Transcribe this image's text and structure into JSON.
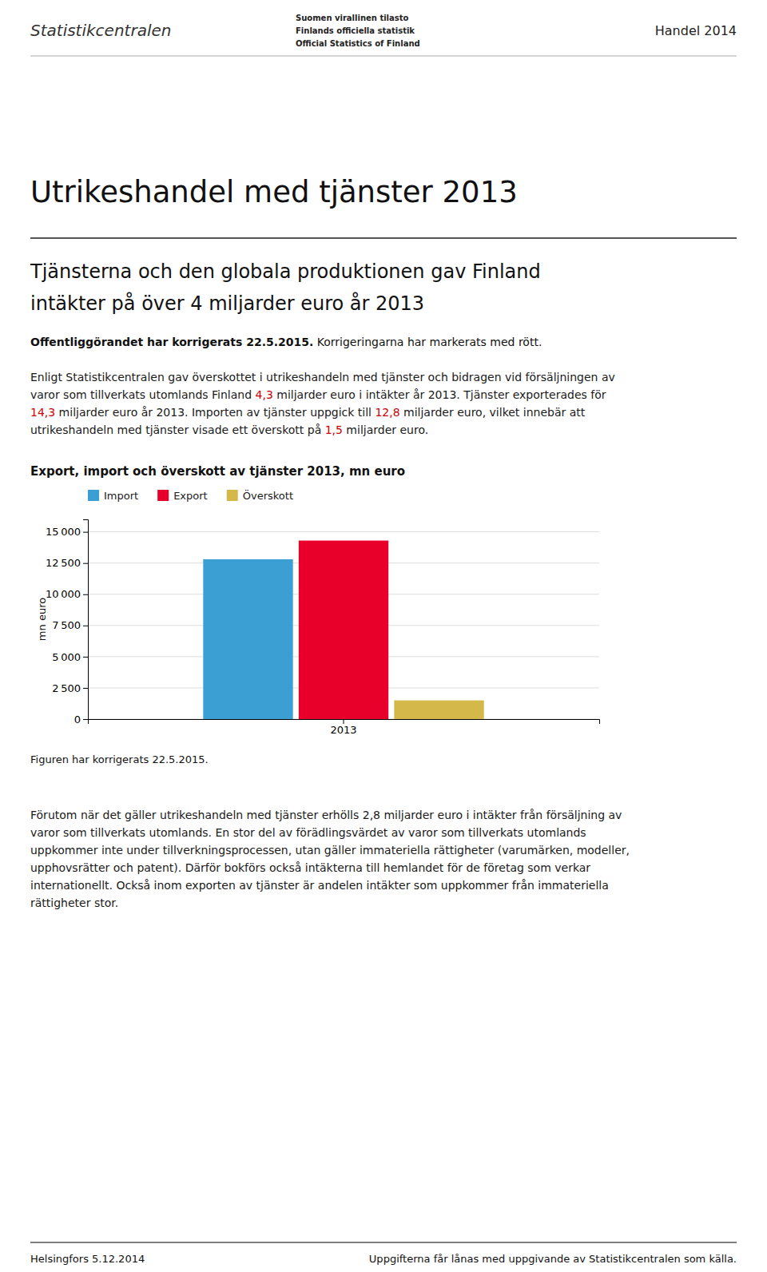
{
  "header": {
    "logo": "Statistikcentralen",
    "official_lines": [
      "Suomen virallinen tilasto",
      "Finlands officiella statistik",
      "Official Statistics of Finland"
    ],
    "right": "Handel 2014"
  },
  "title": "Utrikeshandel med tjänster 2013",
  "subtitle_lines": [
    "Tjänsterna och den globala produktionen gav Finland",
    "intäkter på över 4 miljarder euro år 2013"
  ],
  "correction_note": {
    "bold_text": "Offentliggörandet har korrigerats 22.5.2015.",
    "text": " Korrigeringarna har markerats med rött."
  },
  "body1": [
    [
      {
        "text": "Enligt Statistikcentralen gav överskottet i utrikeshandeln med tjänster och bidragen vid försäljningen av"
      }
    ],
    [
      {
        "text": "varor som tillverkats utomlands Finland "
      },
      {
        "text": "4,3",
        "color": "#cc0000"
      },
      {
        "text": " miljarder euro i intäkter år 2013. Tjänster exporterades för"
      }
    ],
    [
      {
        "text": "14,3",
        "color": "#cc0000"
      },
      {
        "text": " miljarder euro år 2013. Importen av tjänster uppgick till "
      },
      {
        "text": "12,8",
        "color": "#cc0000"
      },
      {
        "text": " miljarder euro, vilket innebär att"
      }
    ],
    [
      {
        "text": "utrikeshandeln med tjänster visade ett överskott på "
      },
      {
        "text": "1,5",
        "color": "#cc0000"
      },
      {
        "text": " miljarder euro."
      }
    ]
  ],
  "chart_data": {
    "type": "bar",
    "title": "Export, import och överskott av tjänster 2013, mn euro",
    "categories": [
      "2013"
    ],
    "series": [
      {
        "name": "Import",
        "color": "#3b9fd4",
        "values": [
          12800
        ]
      },
      {
        "name": "Export",
        "color": "#e8002a",
        "values": [
          14300
        ]
      },
      {
        "name": "Överskott",
        "color": "#d4b84a",
        "values": [
          1500
        ]
      }
    ],
    "ylabel": "mn euro",
    "ylim": [
      0,
      16000
    ],
    "yticks": [
      0,
      {
        "value": 2500,
        "label": "2 500"
      },
      {
        "value": 5000,
        "label": "5 000"
      },
      {
        "value": 7500,
        "label": "7 500"
      },
      {
        "value": 10000,
        "label": "10 000"
      },
      {
        "value": 12500,
        "label": "12 500"
      },
      {
        "value": 15000,
        "label": "15 000"
      }
    ],
    "grid": true,
    "legend": "top"
  },
  "figure_note": "Figuren har korrigerats 22.5.2015.",
  "body2": [
    "Förutom när det gäller utrikeshandeln med tjänster erhölls 2,8 miljarder euro i intäkter från försäljning av",
    "varor som tillverkats utomlands. En stor del av förädlingsvärdet av varor som tillverkats utomlands",
    "uppkommer inte under tillverkningsprocessen, utan gäller immateriella rättigheter (varumärken, modeller,",
    "upphovsrätter och patent). Därför bokförs också intäkterna till hemlandet för de företag som verkar",
    "internationellt. Också inom exporten av tjänster är andelen intäkter som uppkommer från immateriella",
    "rättigheter stor."
  ],
  "footer": {
    "left": "Helsingfors 5.12.2014",
    "right": "Uppgifterna får lånas med uppgivande av Statistikcentralen som källa."
  }
}
